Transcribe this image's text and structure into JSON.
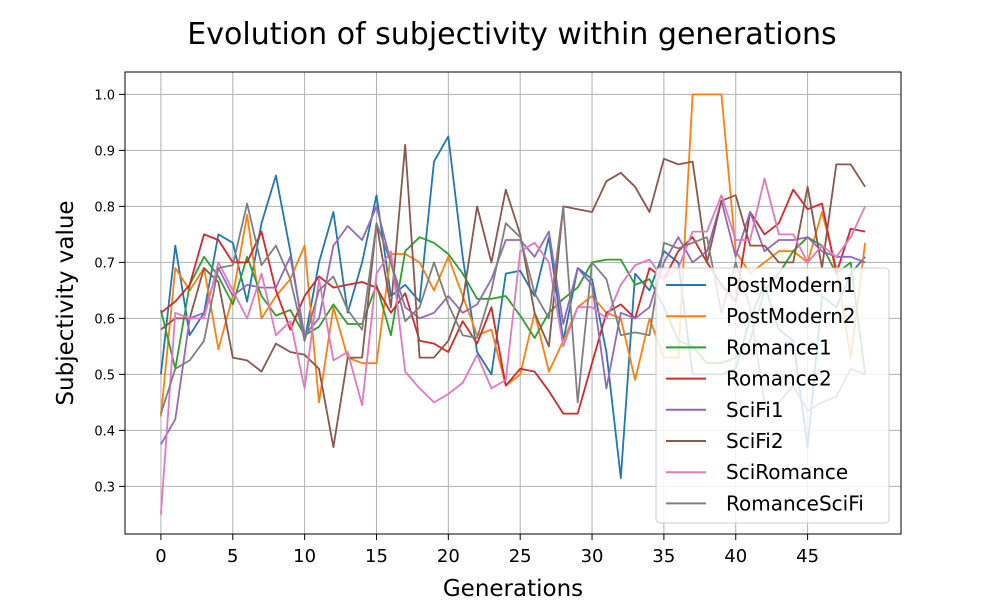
{
  "chart_data": {
    "type": "line",
    "title": "Evolution of subjectivity within generations",
    "xlabel": "Generations",
    "ylabel": "Subjectivity value",
    "xlim": [
      -2.5,
      51.5
    ],
    "ylim": [
      0.215,
      1.04
    ],
    "xticks": [
      "0",
      "5",
      "10",
      "15",
      "20",
      "25",
      "30",
      "35",
      "40",
      "45"
    ],
    "yticks": [
      "0.3",
      "0.4",
      "0.5",
      "0.6",
      "0.7",
      "0.8",
      "0.9",
      "1.0"
    ],
    "grid": true,
    "legend_position": "lower-right",
    "x": [
      0,
      1,
      2,
      3,
      4,
      5,
      6,
      7,
      8,
      9,
      10,
      11,
      12,
      13,
      14,
      15,
      16,
      17,
      18,
      19,
      20,
      21,
      22,
      23,
      24,
      25,
      26,
      27,
      28,
      29,
      30,
      31,
      32,
      33,
      34,
      35,
      36,
      37,
      38,
      39,
      40,
      41,
      42,
      43,
      44,
      45,
      46,
      47,
      48,
      49
    ],
    "series": [
      {
        "name": "PostModern1",
        "color": "#1f77b4",
        "values": [
          0.5,
          0.73,
          0.57,
          0.61,
          0.75,
          0.735,
          0.63,
          0.77,
          0.855,
          0.72,
          0.56,
          0.7,
          0.79,
          0.61,
          0.7,
          0.82,
          0.64,
          0.66,
          0.63,
          0.88,
          0.925,
          0.71,
          0.54,
          0.5,
          0.68,
          0.685,
          0.64,
          0.745,
          0.56,
          0.69,
          0.67,
          0.54,
          0.315,
          0.68,
          0.65,
          0.72,
          0.7,
          0.5,
          0.5,
          0.5,
          0.51,
          0.6,
          0.66,
          0.58,
          0.56,
          0.37,
          0.64,
          0.62,
          0.68,
          0.71
        ]
      },
      {
        "name": "PostModern2",
        "color": "#ff7f0e",
        "values": [
          0.425,
          0.69,
          0.65,
          0.69,
          0.545,
          0.64,
          0.785,
          0.6,
          0.64,
          0.67,
          0.73,
          0.45,
          0.62,
          0.53,
          0.52,
          0.52,
          0.715,
          0.715,
          0.7,
          0.65,
          0.71,
          0.64,
          0.57,
          0.58,
          0.48,
          0.5,
          0.61,
          0.505,
          0.56,
          0.62,
          0.64,
          0.61,
          0.6,
          0.49,
          0.6,
          0.53,
          0.53,
          1.0,
          1.0,
          1.0,
          0.72,
          0.68,
          0.7,
          0.72,
          0.72,
          0.7,
          0.79,
          0.69,
          0.53,
          0.735
        ]
      },
      {
        "name": "Romance1",
        "color": "#2ca02c",
        "values": [
          0.615,
          0.51,
          0.66,
          0.71,
          0.675,
          0.625,
          0.71,
          0.64,
          0.605,
          0.615,
          0.57,
          0.585,
          0.625,
          0.59,
          0.59,
          0.66,
          0.57,
          0.72,
          0.745,
          0.735,
          0.715,
          0.68,
          0.635,
          0.635,
          0.64,
          0.605,
          0.565,
          0.61,
          0.635,
          0.655,
          0.7,
          0.705,
          0.705,
          0.66,
          0.67,
          0.62,
          0.56,
          0.55,
          0.52,
          0.52,
          0.53,
          0.56,
          0.65,
          0.68,
          0.72,
          0.745,
          0.73,
          0.68,
          0.7,
          0.5
        ]
      },
      {
        "name": "Romance2",
        "color": "#d62728",
        "values": [
          0.61,
          0.63,
          0.66,
          0.75,
          0.74,
          0.7,
          0.7,
          0.755,
          0.65,
          0.58,
          0.64,
          0.675,
          0.655,
          0.66,
          0.665,
          0.655,
          0.61,
          0.645,
          0.56,
          0.555,
          0.54,
          0.595,
          0.555,
          0.62,
          0.48,
          0.51,
          0.505,
          0.47,
          0.43,
          0.43,
          0.52,
          0.61,
          0.625,
          0.6,
          0.69,
          0.67,
          0.72,
          0.745,
          0.7,
          0.66,
          0.63,
          0.79,
          0.75,
          0.77,
          0.83,
          0.795,
          0.805,
          0.68,
          0.76,
          0.755
        ]
      },
      {
        "name": "SciFi1",
        "color": "#9467bd",
        "values": [
          0.375,
          0.42,
          0.6,
          0.61,
          0.69,
          0.64,
          0.66,
          0.655,
          0.655,
          0.71,
          0.57,
          0.6,
          0.73,
          0.765,
          0.74,
          0.8,
          0.7,
          0.62,
          0.6,
          0.61,
          0.64,
          0.61,
          0.625,
          0.67,
          0.74,
          0.74,
          0.71,
          0.755,
          0.59,
          0.69,
          0.66,
          0.475,
          0.61,
          0.6,
          0.62,
          0.7,
          0.745,
          0.7,
          0.72,
          0.81,
          0.71,
          0.79,
          0.72,
          0.74,
          0.74,
          0.745,
          0.72,
          0.71,
          0.71,
          0.7
        ]
      },
      {
        "name": "SciFi2",
        "color": "#8c564b",
        "values": [
          0.58,
          0.6,
          0.6,
          0.69,
          0.665,
          0.53,
          0.525,
          0.505,
          0.555,
          0.54,
          0.535,
          0.51,
          0.37,
          0.53,
          0.53,
          0.77,
          0.62,
          0.91,
          0.53,
          0.53,
          0.56,
          0.63,
          0.8,
          0.7,
          0.83,
          0.75,
          0.61,
          0.55,
          0.8,
          0.795,
          0.79,
          0.845,
          0.86,
          0.835,
          0.79,
          0.885,
          0.875,
          0.88,
          0.7,
          0.81,
          0.82,
          0.73,
          0.73,
          0.7,
          0.7,
          0.835,
          0.69,
          0.875,
          0.875,
          0.835
        ]
      },
      {
        "name": "SciRomance",
        "color": "#e377c2",
        "values": [
          0.25,
          0.61,
          0.6,
          0.6,
          0.7,
          0.65,
          0.6,
          0.68,
          0.57,
          0.595,
          0.475,
          0.67,
          0.525,
          0.54,
          0.445,
          0.68,
          0.72,
          0.505,
          0.475,
          0.45,
          0.465,
          0.485,
          0.535,
          0.475,
          0.49,
          0.72,
          0.735,
          0.7,
          0.55,
          0.62,
          0.62,
          0.6,
          0.66,
          0.695,
          0.705,
          0.67,
          0.69,
          0.755,
          0.755,
          0.82,
          0.74,
          0.74,
          0.85,
          0.75,
          0.75,
          0.7,
          0.73,
          0.71,
          0.745,
          0.8
        ]
      },
      {
        "name": "RomanceSciFi",
        "color": "#7f7f7f",
        "values": [
          0.43,
          0.51,
          0.525,
          0.56,
          0.69,
          0.695,
          0.805,
          0.695,
          0.73,
          0.67,
          0.56,
          0.65,
          0.675,
          0.615,
          0.58,
          0.77,
          0.7,
          0.595,
          0.62,
          0.7,
          0.625,
          0.57,
          0.565,
          0.65,
          0.77,
          0.745,
          0.645,
          0.6,
          0.8,
          0.45,
          0.7,
          0.67,
          0.57,
          0.575,
          0.57,
          0.735,
          0.725,
          0.735,
          0.745,
          0.61,
          0.7,
          0.62,
          0.45,
          0.45,
          0.48,
          0.435,
          0.45,
          0.46,
          0.51,
          0.5
        ]
      }
    ]
  }
}
